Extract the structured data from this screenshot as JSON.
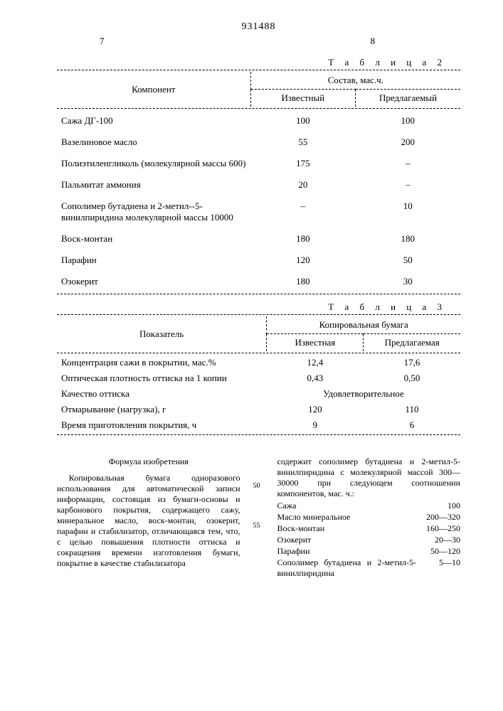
{
  "patent_number": "931488",
  "column_left": "7",
  "column_right": "8",
  "table2": {
    "caption": "Т а б л и ц а   2",
    "header_component": "Компонент",
    "header_comp": "Состав, мас.ч.",
    "header_known": "Известный",
    "header_proposed": "Предлагаемый",
    "rows": [
      {
        "name": "Сажа ДГ-100",
        "known": "100",
        "proposed": "100"
      },
      {
        "name": "Вазелиновое масло",
        "known": "55",
        "proposed": "200"
      },
      {
        "name": "Полиэтиленгликоль (молекулярной массы 600)",
        "known": "175",
        "proposed": "–"
      },
      {
        "name": "Пальмитат аммония",
        "known": "20",
        "proposed": "–"
      },
      {
        "name": "Сополимер бутадиена и 2-метил--5-винилпиридина молекулярной массы 10000",
        "known": "–",
        "proposed": "10"
      },
      {
        "name": "Воск-монтан",
        "known": "180",
        "proposed": "180"
      },
      {
        "name": "Парафин",
        "known": "120",
        "proposed": "50"
      },
      {
        "name": "Озокерит",
        "known": "180",
        "proposed": "30"
      }
    ]
  },
  "table3": {
    "caption": "Т а б л и ц а   3",
    "header_indicator": "Показатель",
    "header_paper": "Копировальная бумага",
    "header_known": "Известная",
    "header_proposed": "Предлагаемая",
    "rows": [
      {
        "name": "Концентрация сажи в покрытии, мас.%",
        "known": "12,4",
        "proposed": "17,6"
      },
      {
        "name": "Оптическая плотность оттиска на 1 копии",
        "known": "0,43",
        "proposed": "0,50"
      },
      {
        "name": "Качество оттиска",
        "span": "Удовлетворительное"
      },
      {
        "name": "Отмарывание (нагрузка), г",
        "known": "120",
        "proposed": "110"
      },
      {
        "name": "Время приготовления покрытия, ч",
        "known": "9",
        "proposed": "6"
      }
    ]
  },
  "formula_title": "Формула изобретения",
  "left_para": "Копировальная бумага одноразового использования для автоматической записи информации, состоящая из бумаги-основы и карбонового покрытия, содержащего сажу, минеральное масло, воск-монтан, озокерит, парафин и стабилизатор, отличающаяся тем, что, с целью повышения плотности оттиска и сокращения времени изготовления бумаги, покрытие в качестве стабилизатора",
  "right_para_top": "содержит сополимер бутадиена и 2-метил-5-винилпиридина с молекулярной массой 300—30000 при следующем соотношении компонентов, мас. ч.:",
  "components": [
    {
      "n": "Сажа",
      "v": "100"
    },
    {
      "n": "Масло минеральное",
      "v": "200—320"
    },
    {
      "n": "Воск-монтан",
      "v": "160—250"
    },
    {
      "n": "Озокерит",
      "v": "20—30"
    },
    {
      "n": "Парафин",
      "v": "50—120"
    },
    {
      "n": "Сополимер бутадиена и 2-метил-5-винилпиридина",
      "v": "5—10"
    }
  ],
  "linenum_50": "50",
  "linenum_55": "55"
}
